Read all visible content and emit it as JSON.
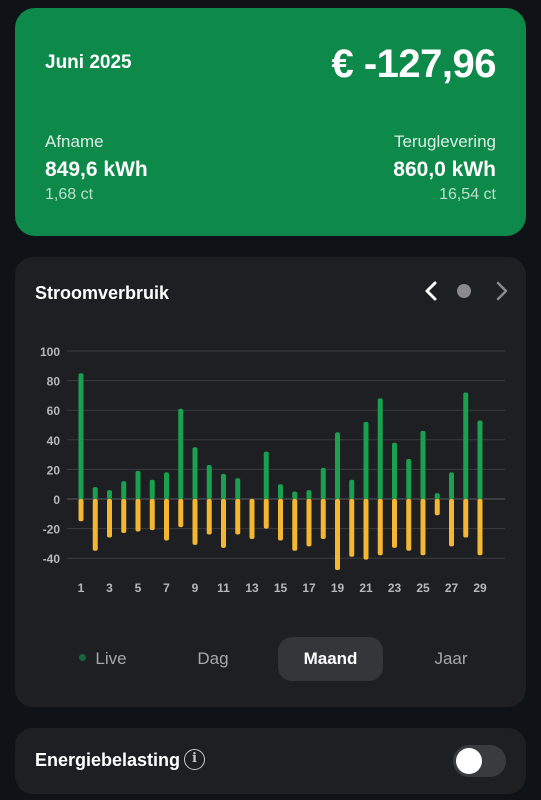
{
  "summary": {
    "month": "Juni 2025",
    "total": "€ -127,96",
    "afname": {
      "label": "Afname",
      "value": "849,6 kWh",
      "price": "1,68 ct"
    },
    "teruglevering": {
      "label": "Teruglevering",
      "value": "860,0 kWh",
      "price": "16,54 ct"
    },
    "color": "#0d8a4a"
  },
  "chart_card": {
    "title": "Stroomverbruik",
    "prev_icon": "chevron-left-icon",
    "next_icon": "chevron-right-icon"
  },
  "chart_data": {
    "type": "bar",
    "title": "Stroomverbruik",
    "x": [
      1,
      2,
      3,
      4,
      5,
      6,
      7,
      8,
      9,
      10,
      11,
      12,
      13,
      14,
      15,
      16,
      17,
      18,
      19,
      20,
      21,
      22,
      23,
      24,
      25,
      26,
      27,
      28,
      29,
      30
    ],
    "x_tick_labels": [
      "1",
      "3",
      "5",
      "7",
      "9",
      "11",
      "13",
      "15",
      "17",
      "19",
      "21",
      "23",
      "25",
      "27",
      "29"
    ],
    "ylim": [
      -45,
      100
    ],
    "y_ticks": [
      100,
      80,
      60,
      40,
      20,
      0,
      -20,
      -40
    ],
    "grid": true,
    "series": [
      {
        "color": "#1aa150",
        "values": [
          85,
          8,
          6,
          12,
          19,
          13,
          18,
          61,
          35,
          23,
          17,
          14,
          0,
          32,
          10,
          5,
          6,
          21,
          45,
          13,
          52,
          68,
          38,
          27,
          46,
          4,
          18,
          72,
          53,
          0
        ]
      },
      {
        "color": "#f4b731",
        "values": [
          -15,
          -35,
          -26,
          -23,
          -22,
          -21,
          -28,
          -19,
          -31,
          -24,
          -33,
          -24,
          -27,
          -20,
          -28,
          -35,
          -32,
          -27,
          -48,
          -39,
          -41,
          -38,
          -33,
          -35,
          -38,
          -11,
          -32,
          -26,
          -38,
          0
        ]
      }
    ]
  },
  "tabs": [
    {
      "label": "Live"
    },
    {
      "label": "Dag"
    },
    {
      "label": "Maand",
      "selected": true
    },
    {
      "label": "Jaar"
    }
  ],
  "tax": {
    "label": "Energiebelasting",
    "info_icon": "info-icon",
    "toggle_on": false
  }
}
